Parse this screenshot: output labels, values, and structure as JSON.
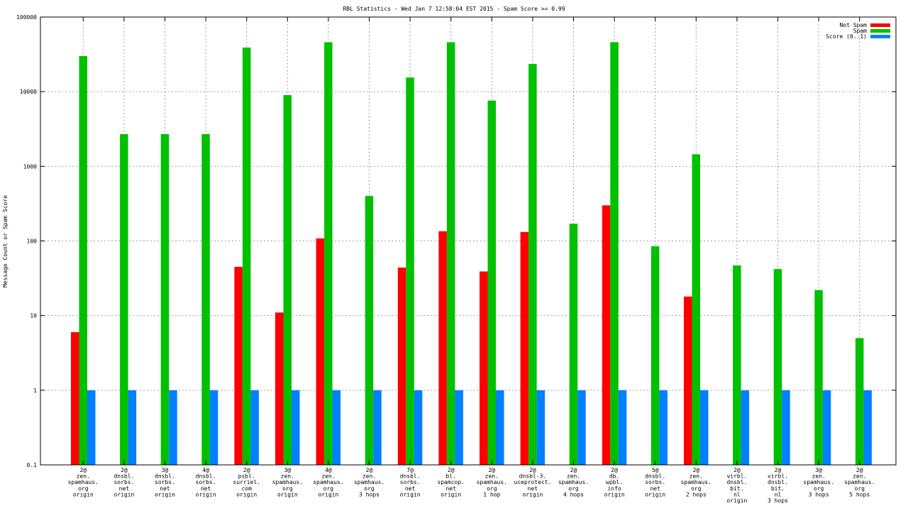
{
  "chart_data": {
    "type": "bar",
    "title": "RBL Statistics - Wed Jan  7 12:58:04 EST 2015 - Spam Score >= 0.99",
    "ylabel": "Message Count or Spam Score",
    "yscale": "log",
    "ylim": [
      0.1,
      100000
    ],
    "yticks": [
      "0.1",
      "1",
      "10",
      "100",
      "1000",
      "10000",
      "100000"
    ],
    "grid": true,
    "legend_position": "top-right",
    "categories": [
      [
        "2@",
        "zen.",
        "spamhaus.",
        "org",
        "origin"
      ],
      [
        "2@",
        "dnsbl.",
        "sorbs.",
        "net",
        "origin"
      ],
      [
        "3@",
        "dnsbl.",
        "sorbs.",
        "net",
        "origin"
      ],
      [
        "4@",
        "dnsbl.",
        "sorbs.",
        "net",
        "origin"
      ],
      [
        "2@",
        "psbl.",
        "surriel.",
        "com",
        "origin"
      ],
      [
        "3@",
        "zen.",
        "spamhaus.",
        "org",
        "origin"
      ],
      [
        "4@",
        "zen.",
        "spamhaus.",
        "org",
        "origin"
      ],
      [
        "2@",
        "zen.",
        "spamhaus.",
        "org",
        "3 hops"
      ],
      [
        "7@",
        "dnsbl.",
        "sorbs.",
        "net",
        "origin"
      ],
      [
        "2@",
        "bl.",
        "spamcop.",
        "net",
        "origin"
      ],
      [
        "2@",
        "zen.",
        "spamhaus.",
        "org",
        "1 hop"
      ],
      [
        "2@",
        "dnsbl-3.",
        "uceprotect.",
        "net",
        "origin"
      ],
      [
        "2@",
        "zen.",
        "spamhaus.",
        "org",
        "4 hops"
      ],
      [
        "2@",
        "db.",
        "wpbl.",
        "info",
        "origin"
      ],
      [
        "5@",
        "dnsbl.",
        "sorbs.",
        "net",
        "origin"
      ],
      [
        "2@",
        "zen.",
        "spamhaus.",
        "org",
        "2 hops"
      ],
      [
        "2@",
        "virbl.",
        "dnsbl.",
        "bit.",
        "nl",
        "origin"
      ],
      [
        "2@",
        "virbl.",
        "dnsbl.",
        "bit.",
        "nl",
        "3 hops"
      ],
      [
        "3@",
        "zen.",
        "spamhaus.",
        "org",
        "3 hops"
      ],
      [
        "2@",
        "zen.",
        "spamhaus.",
        "org",
        "5 hops"
      ]
    ],
    "series": [
      {
        "name": "Not Spam",
        "color": "#ff0000",
        "values": [
          6,
          null,
          null,
          null,
          45,
          11,
          108,
          null,
          44,
          135,
          39,
          132,
          null,
          300,
          null,
          18,
          null,
          null,
          null,
          null
        ]
      },
      {
        "name": "Spam",
        "color": "#00c000",
        "values": [
          30000,
          2700,
          2700,
          2700,
          39000,
          9000,
          46000,
          400,
          15500,
          46000,
          7600,
          23500,
          170,
          46000,
          85,
          1450,
          47,
          42,
          22,
          5
        ]
      },
      {
        "name": "Score (0..1)",
        "color": "#0080ff",
        "values": [
          1,
          1,
          1,
          1,
          1,
          1,
          1,
          1,
          1,
          1,
          1,
          1,
          1,
          1,
          1,
          1,
          1,
          1,
          1,
          1
        ]
      }
    ]
  }
}
